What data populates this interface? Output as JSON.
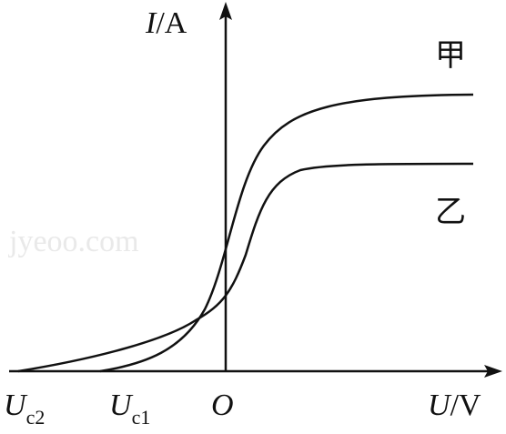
{
  "axes": {
    "y_label": {
      "symbol": "I",
      "unit": "/A"
    },
    "x_label": {
      "symbol": "U",
      "unit": "/V"
    },
    "origin": "O"
  },
  "points": [
    {
      "symbol": "U",
      "subscript": "c2"
    },
    {
      "symbol": "U",
      "subscript": "c1"
    }
  ],
  "curves": [
    {
      "label": "甲"
    },
    {
      "label": "乙"
    }
  ],
  "watermark": "jyeoo.com"
}
